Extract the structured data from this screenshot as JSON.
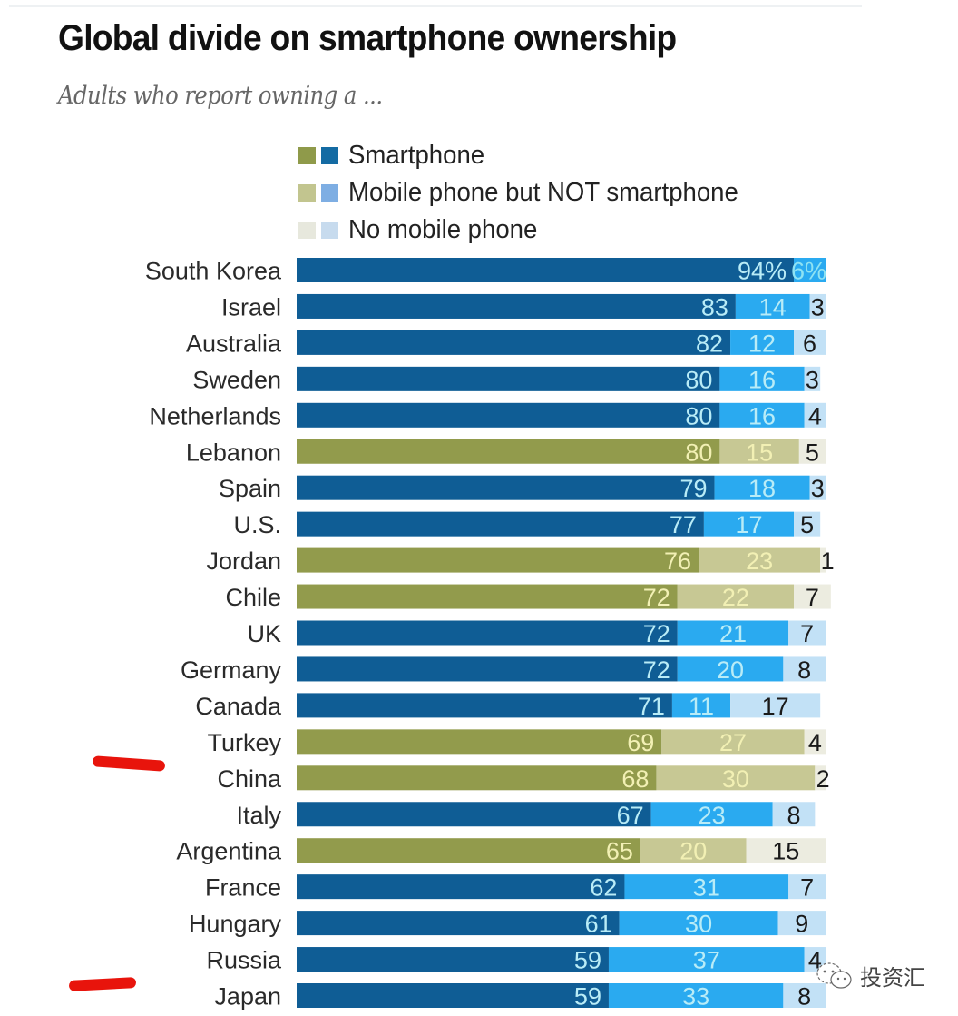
{
  "chart_data": {
    "type": "bar",
    "orientation": "horizontal",
    "stacked": true,
    "title": "Global divide on smartphone ownership",
    "subtitle": "Adults who report owning a ...",
    "xlabel": "",
    "ylabel": "",
    "xlim": [
      0,
      100
    ],
    "grid": false,
    "legend_position": "top",
    "legend": [
      {
        "label": "Smartphone",
        "colors": [
          "#8f9a4a",
          "#146ba3"
        ]
      },
      {
        "label": "Mobile phone but NOT smartphone",
        "colors": [
          "#c2c58f",
          "#7eaee3"
        ]
      },
      {
        "label": "No mobile phone",
        "colors": [
          "#e7e8dd",
          "#c7dbee"
        ]
      }
    ],
    "palettes": {
      "blue": {
        "smartphone": "#0f5d95",
        "mobile": "#2aaaf0",
        "none": "#c2e1f6",
        "label_light": "#b9ecf7"
      },
      "olive": {
        "smartphone": "#929b4c",
        "mobile": "#c7c894",
        "none": "#ecece0",
        "label_light": "#f2f0b4"
      }
    },
    "categories": [
      "South Korea",
      "Israel",
      "Australia",
      "Sweden",
      "Netherlands",
      "Lebanon",
      "Spain",
      "U.S.",
      "Jordan",
      "Chile",
      "UK",
      "Germany",
      "Canada",
      "Turkey",
      "China",
      "Italy",
      "Argentina",
      "France",
      "Hungary",
      "Russia",
      "Japan"
    ],
    "palette_by_category": [
      "blue",
      "blue",
      "blue",
      "blue",
      "blue",
      "olive",
      "blue",
      "blue",
      "olive",
      "olive",
      "blue",
      "blue",
      "blue",
      "olive",
      "olive",
      "blue",
      "olive",
      "blue",
      "blue",
      "blue",
      "blue"
    ],
    "series": [
      {
        "name": "Smartphone",
        "values": [
          94,
          83,
          82,
          80,
          80,
          80,
          79,
          77,
          76,
          72,
          72,
          72,
          71,
          69,
          68,
          67,
          65,
          62,
          61,
          59,
          59
        ]
      },
      {
        "name": "Mobile phone but NOT smartphone",
        "values": [
          6,
          14,
          12,
          16,
          16,
          15,
          18,
          17,
          23,
          22,
          21,
          20,
          11,
          27,
          30,
          23,
          20,
          31,
          30,
          37,
          33
        ]
      },
      {
        "name": "No mobile phone",
        "values": [
          0,
          3,
          6,
          3,
          4,
          5,
          3,
          5,
          1,
          7,
          7,
          8,
          17,
          4,
          2,
          8,
          15,
          7,
          9,
          4,
          8
        ]
      }
    ],
    "value_labels": [
      [
        "94%",
        "6%",
        ""
      ],
      [
        "83",
        "14",
        "3"
      ],
      [
        "82",
        "12",
        "6"
      ],
      [
        "80",
        "16",
        "3"
      ],
      [
        "80",
        "16",
        "4"
      ],
      [
        "80",
        "15",
        "5"
      ],
      [
        "79",
        "18",
        "3"
      ],
      [
        "77",
        "17",
        "5"
      ],
      [
        "76",
        "23",
        "1"
      ],
      [
        "72",
        "22",
        "7"
      ],
      [
        "72",
        "21",
        "7"
      ],
      [
        "72",
        "20",
        "8"
      ],
      [
        "71",
        "11",
        "17"
      ],
      [
        "69",
        "27",
        "4"
      ],
      [
        "68",
        "30",
        "2"
      ],
      [
        "67",
        "23",
        "8"
      ],
      [
        "65",
        "20",
        "15"
      ],
      [
        "62",
        "31",
        "7"
      ],
      [
        "61",
        "30",
        "9"
      ],
      [
        "59",
        "37",
        "4"
      ],
      [
        "59",
        "33",
        "8"
      ]
    ],
    "highlighted_categories": [
      "China",
      "Japan"
    ],
    "annotation_color": "#e8140c"
  },
  "watermark": {
    "text": "投资汇",
    "icon": "wechat-icon"
  }
}
